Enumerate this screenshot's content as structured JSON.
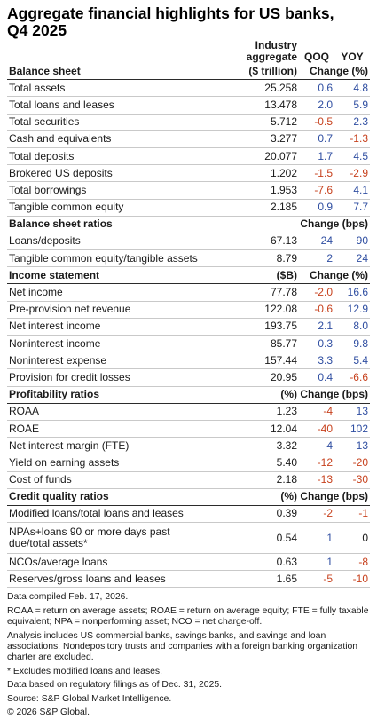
{
  "title_line1": "Aggregate financial highlights for US banks,",
  "title_line2": "Q4 2025",
  "header": {
    "col_industry_line1": "Industry",
    "col_industry_line2": "aggregate",
    "col_qoq": "QOQ",
    "col_yoy": "YOY"
  },
  "sections": [
    {
      "title": "Balance sheet",
      "unit": "($ trillion)",
      "change_unit": "Change (%)",
      "rows": [
        {
          "label": "Total assets",
          "value": "25.258",
          "qoq": "0.6",
          "yoy": "4.8"
        },
        {
          "label": "Total loans and leases",
          "value": "13.478",
          "qoq": "2.0",
          "yoy": "5.9"
        },
        {
          "label": "Total securities",
          "value": "5.712",
          "qoq": "-0.5",
          "yoy": "2.3"
        },
        {
          "label": "Cash and equivalents",
          "value": "3.277",
          "qoq": "0.7",
          "yoy": "-1.3"
        },
        {
          "label": "Total deposits",
          "value": "20.077",
          "qoq": "1.7",
          "yoy": "4.5"
        },
        {
          "label": "Brokered US deposits",
          "value": "1.202",
          "qoq": "-1.5",
          "yoy": "-2.9"
        },
        {
          "label": "Total borrowings",
          "value": "1.953",
          "qoq": "-7.6",
          "yoy": "4.1"
        },
        {
          "label": "Tangible common equity",
          "value": "2.185",
          "qoq": "0.9",
          "yoy": "7.7"
        }
      ]
    },
    {
      "title": "Balance sheet ratios",
      "unit": "",
      "change_unit": "Change (bps)",
      "rows": [
        {
          "label": "Loans/deposits",
          "value": "67.13",
          "qoq": "24",
          "yoy": "90"
        },
        {
          "label": "Tangible common equity/tangible assets",
          "value": "8.79",
          "qoq": "2",
          "yoy": "24"
        }
      ]
    },
    {
      "title": "Income statement",
      "unit": "($B)",
      "change_unit": "Change (%)",
      "rows": [
        {
          "label": "Net income",
          "value": "77.78",
          "qoq": "-2.0",
          "yoy": "16.6"
        },
        {
          "label": "Pre-provision net revenue",
          "value": "122.08",
          "qoq": "-0.6",
          "yoy": "12.9"
        },
        {
          "label": "Net interest income",
          "value": "193.75",
          "qoq": "2.1",
          "yoy": "8.0"
        },
        {
          "label": "Noninterest income",
          "value": "85.77",
          "qoq": "0.3",
          "yoy": "9.8"
        },
        {
          "label": "Noninterest expense",
          "value": "157.44",
          "qoq": "3.3",
          "yoy": "5.4"
        },
        {
          "label": "Provision for credit losses",
          "value": "20.95",
          "qoq": "0.4",
          "yoy": "-6.6"
        }
      ]
    },
    {
      "title": "Profitability ratios",
      "unit": "(%)",
      "change_unit": "Change (bps)",
      "rows": [
        {
          "label": "ROAA",
          "value": "1.23",
          "qoq": "-4",
          "yoy": "13"
        },
        {
          "label": "ROAE",
          "value": "12.04",
          "qoq": "-40",
          "yoy": "102"
        },
        {
          "label": "Net interest margin (FTE)",
          "value": "3.32",
          "qoq": "4",
          "yoy": "13"
        },
        {
          "label": "Yield on earning assets",
          "value": "5.40",
          "qoq": "-12",
          "yoy": "-20"
        },
        {
          "label": "Cost of funds",
          "value": "2.18",
          "qoq": "-13",
          "yoy": "-30"
        }
      ]
    },
    {
      "title": "Credit quality ratios",
      "unit": "(%)",
      "change_unit": "Change (bps)",
      "rows": [
        {
          "label": "Modified loans/total loans and leases",
          "value": "0.39",
          "qoq": "-2",
          "yoy": "-1"
        },
        {
          "label": "NPAs+loans 90 or more days past due/total assets*",
          "value": "0.54",
          "qoq": "1",
          "yoy": "0",
          "tall": true
        },
        {
          "label": "NCOs/average loans",
          "value": "0.63",
          "qoq": "1",
          "yoy": "-8"
        },
        {
          "label": "Reserves/gross loans and leases",
          "value": "1.65",
          "qoq": "-5",
          "yoy": "-10"
        }
      ]
    }
  ],
  "notes": [
    "Data compiled Feb. 17, 2026.",
    "ROAA = return on average assets; ROAE = return on average equity; FTE = fully taxable equivalent; NPA = nonperforming asset; NCO = net charge-off.",
    "Analysis includes US commercial banks, savings banks, and savings and loan associations. Nondepository trusts and companies with a foreign banking organization charter are excluded.",
    "* Excludes modified loans and leases.",
    "Data based on regulatory filings as of Dec. 31, 2025.",
    "Source: S&P Global Market Intelligence.",
    "© 2026 S&P Global."
  ],
  "colors": {
    "positive": "#2f4ea1",
    "negative": "#c7411d"
  }
}
